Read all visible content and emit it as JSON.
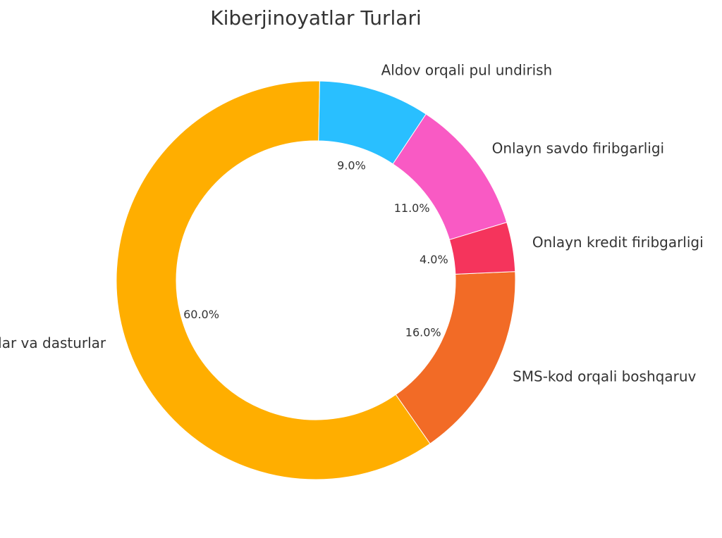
{
  "chart_data": {
    "type": "pie",
    "title": "Kiberjinoyatlar Turlari",
    "donut": true,
    "slices": [
      {
        "label": "SMS-kod orqali boshqaruv",
        "value": 16.0,
        "pct_label": "16.0%",
        "color": "#F26B26"
      },
      {
        "label": "Zararli havolalar va dasturlar",
        "value": 60.0,
        "pct_label": "60.0%",
        "color": "#FFAE00"
      },
      {
        "label": "Aldov orqali pul undirish",
        "value": 9.0,
        "pct_label": "9.0%",
        "color": "#29BFFF"
      },
      {
        "label": "Onlayn savdo firibgarligi",
        "value": 11.0,
        "pct_label": "11.0%",
        "color": "#F95AC4"
      },
      {
        "label": "Onlayn kredit firibgarligi",
        "value": 4.0,
        "pct_label": "4.0%",
        "color": "#F5345C"
      }
    ]
  }
}
